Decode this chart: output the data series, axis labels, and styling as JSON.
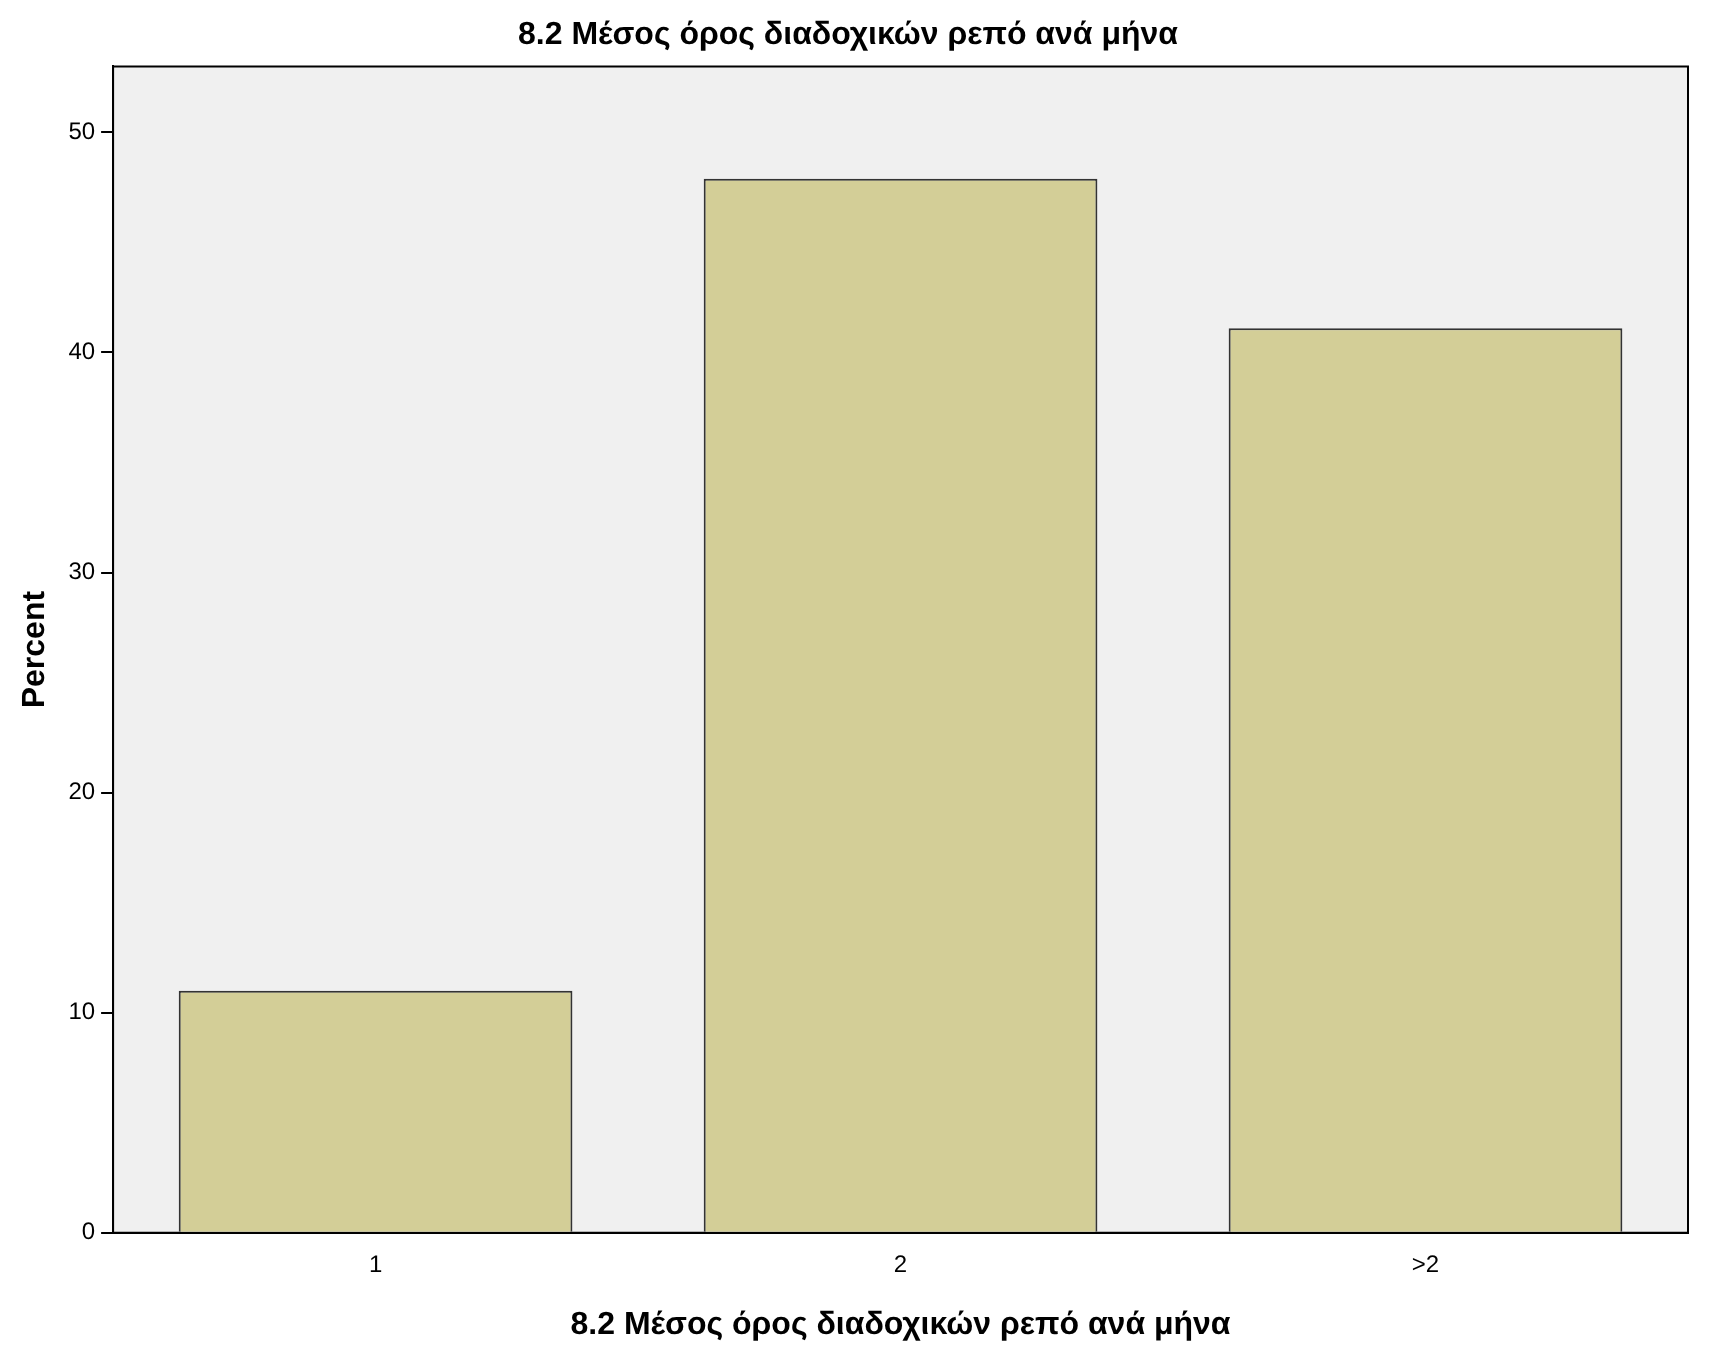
{
  "chart_data": {
    "type": "bar",
    "title": "8.2 Μέσος όρος διαδοχικών ρεπό ανά μήνα",
    "xlabel": "8.2 Μέσος όρος διαδοχικών ρεπό ανά μήνα",
    "ylabel": "Percent",
    "categories": [
      "1",
      "2",
      ">2"
    ],
    "values": [
      11.0,
      47.9,
      41.1
    ],
    "color": "#d3ce97",
    "ylim": [
      0,
      53
    ],
    "yticks": [
      0,
      10,
      20,
      30,
      40,
      50
    ],
    "grid": false,
    "legend": false
  }
}
